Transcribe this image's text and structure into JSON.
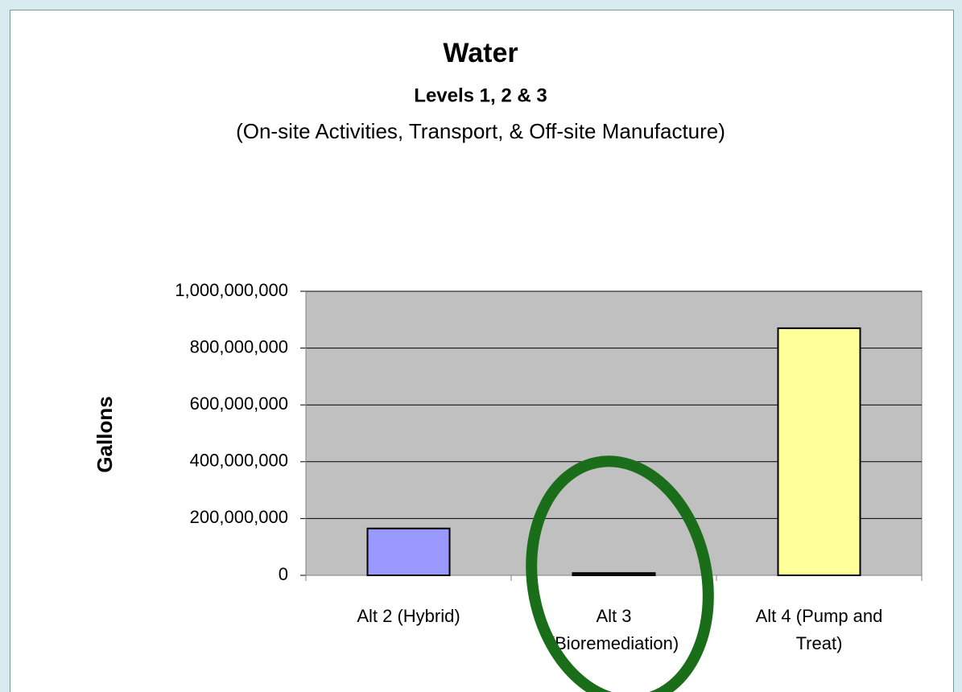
{
  "chart_data": {
    "type": "bar",
    "title": "Water",
    "subtitle": "Levels 1, 2 & 3",
    "description": "(On-site Activities, Transport, & Off-site Manufacture)",
    "y_label": "Gallons",
    "categories": [
      "Alt 2 (Hybrid)",
      "Alt 3 (Bioremediation)",
      "Alt 4 (Pump and Treat)"
    ],
    "values": [
      165000000,
      8000000,
      870000000
    ],
    "colors": [
      "#9999ff",
      "#1a1a1a",
      "#ffff99"
    ],
    "ylim": [
      0,
      1000000000
    ],
    "yticks": [
      0,
      {
        "value": 200000000,
        "label": "200,000,000"
      },
      {
        "value": 400000000,
        "label": "400,000,000"
      },
      {
        "value": 600000000,
        "label": "600,000,000"
      },
      {
        "value": 800000000,
        "label": "800,000,000"
      },
      {
        "value": 1000000000,
        "label": "1,000,000,000"
      }
    ],
    "grid": true
  }
}
